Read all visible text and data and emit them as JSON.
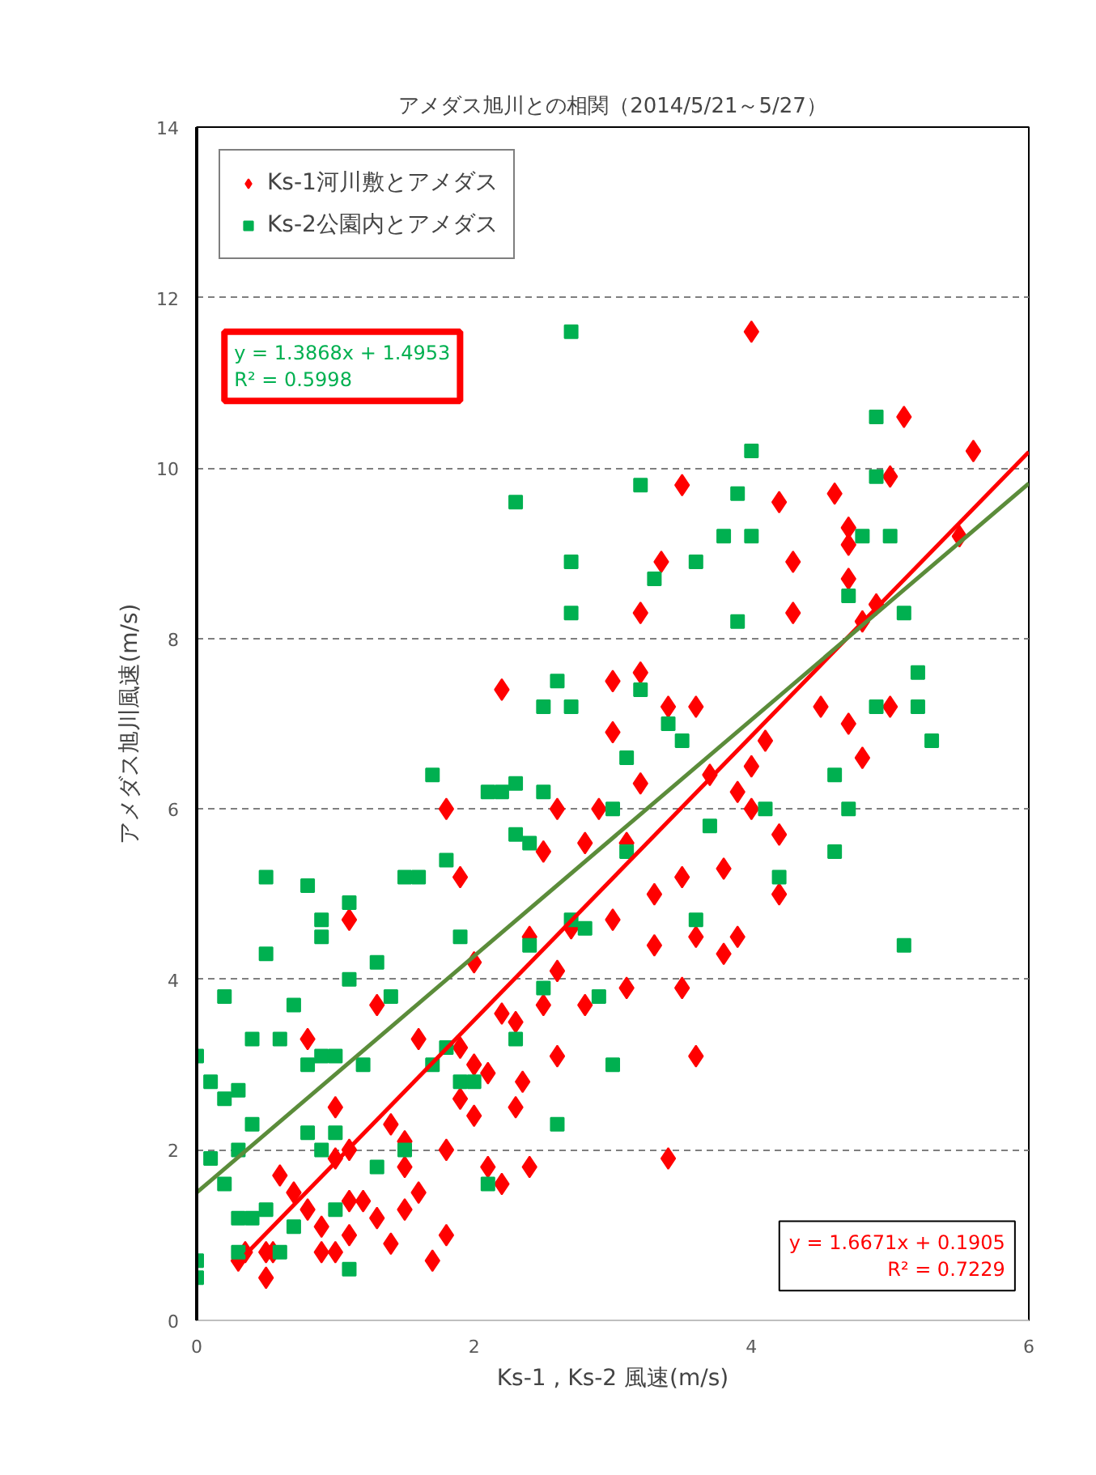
{
  "chart_data": {
    "type": "scatter",
    "title": "アメダス旭川との相関（2014/5/21～5/27）",
    "xlabel": "Ks-1 , Ks-2 風速(m/s)",
    "ylabel": "アメダス旭川風速(m/s)",
    "xlim": [
      0,
      6
    ],
    "ylim": [
      0,
      14
    ],
    "xticks": [
      0,
      2,
      4,
      6
    ],
    "yticks": [
      0,
      2,
      4,
      6,
      8,
      10,
      12,
      14
    ],
    "grid": "y",
    "legend": "top left",
    "annotations": [
      "y = 1.3868x + 1.4953\nR² = 0.5998",
      "y = 1.6671x + 0.1905\nR² = 0.7229"
    ],
    "series": [
      {
        "name": "Ks-1河川敷とアメダス",
        "color": "#ff0000",
        "marker": "diamond",
        "x": [
          0.3,
          0.35,
          0.5,
          0.5,
          0.55,
          0.6,
          0.7,
          0.8,
          0.8,
          0.9,
          0.9,
          1.0,
          1.0,
          1.0,
          1.1,
          1.1,
          1.1,
          1.1,
          1.2,
          1.3,
          1.3,
          1.4,
          1.4,
          1.5,
          1.5,
          1.6,
          1.6,
          1.7,
          1.8,
          1.8,
          1.8,
          1.9,
          1.9,
          1.9,
          2.0,
          2.0,
          2.1,
          2.1,
          2.2,
          2.2,
          2.2,
          2.3,
          2.3,
          2.35,
          2.4,
          2.4,
          2.5,
          2.5,
          2.6,
          2.6,
          2.6,
          2.7,
          2.8,
          2.8,
          2.9,
          3.0,
          3.0,
          3.0,
          3.1,
          3.1,
          3.2,
          3.2,
          3.2,
          3.3,
          3.3,
          3.35,
          3.4,
          3.4,
          3.5,
          3.5,
          3.5,
          3.6,
          3.6,
          3.6,
          3.7,
          3.8,
          3.8,
          3.9,
          3.9,
          4.0,
          4.0,
          4.1,
          4.2,
          4.2,
          4.3,
          4.3,
          4.2,
          4.5,
          4.6,
          4.7,
          4.7,
          4.7,
          4.7,
          4.8,
          4.8,
          4.9,
          5.0,
          5.0,
          5.1,
          5.5,
          5.6,
          4.0,
          1.5,
          2.0
        ],
        "values": [
          0.7,
          0.8,
          0.5,
          0.8,
          0.8,
          1.7,
          1.5,
          1.3,
          3.3,
          0.8,
          1.1,
          0.8,
          1.9,
          2.5,
          1.0,
          1.4,
          2.0,
          4.7,
          1.4,
          1.2,
          3.7,
          0.9,
          2.3,
          1.8,
          2.1,
          1.5,
          3.3,
          0.7,
          1.0,
          2.0,
          6.0,
          2.6,
          3.2,
          5.2,
          3.0,
          4.2,
          1.8,
          2.9,
          1.6,
          3.6,
          7.4,
          2.5,
          3.5,
          2.8,
          1.8,
          4.5,
          3.7,
          5.5,
          3.1,
          4.1,
          6.0,
          4.6,
          3.7,
          5.6,
          6.0,
          4.7,
          6.9,
          7.5,
          3.9,
          5.6,
          6.3,
          7.6,
          8.3,
          4.4,
          5.0,
          8.9,
          1.9,
          7.2,
          3.9,
          5.2,
          9.8,
          3.1,
          4.5,
          7.2,
          6.4,
          4.3,
          5.3,
          4.5,
          6.2,
          6.5,
          11.6,
          6.8,
          5.0,
          5.7,
          8.3,
          8.9,
          9.6,
          7.2,
          9.7,
          7.0,
          8.7,
          9.1,
          9.3,
          6.6,
          8.2,
          8.4,
          7.2,
          9.9,
          10.6,
          9.2,
          10.2,
          6.0,
          1.3,
          2.4
        ]
      },
      {
        "name": "Ks-2公園内とアメダス",
        "color": "#00b050",
        "marker": "square",
        "x": [
          0.0,
          0.0,
          0.0,
          0.1,
          0.1,
          0.2,
          0.2,
          0.2,
          0.3,
          0.3,
          0.3,
          0.3,
          0.4,
          0.4,
          0.4,
          0.5,
          0.5,
          0.5,
          0.6,
          0.6,
          0.7,
          0.7,
          0.8,
          0.8,
          0.8,
          0.9,
          0.9,
          0.9,
          0.9,
          1.0,
          1.0,
          1.0,
          1.1,
          1.1,
          1.1,
          1.2,
          1.3,
          1.3,
          1.4,
          1.5,
          1.5,
          1.6,
          1.7,
          1.7,
          1.8,
          1.8,
          1.9,
          1.9,
          2.0,
          2.1,
          2.1,
          2.2,
          2.3,
          2.3,
          2.3,
          2.3,
          2.4,
          2.4,
          2.5,
          2.5,
          2.5,
          2.6,
          2.6,
          2.7,
          2.7,
          2.7,
          2.7,
          2.7,
          2.8,
          2.9,
          3.0,
          3.0,
          3.1,
          3.1,
          3.2,
          3.2,
          3.3,
          3.4,
          3.5,
          3.6,
          3.6,
          3.7,
          3.8,
          3.9,
          3.9,
          4.0,
          4.0,
          4.1,
          4.2,
          4.6,
          4.6,
          4.7,
          4.7,
          4.8,
          4.9,
          4.9,
          4.9,
          5.0,
          5.1,
          5.1,
          5.2,
          5.2,
          5.3
        ],
        "values": [
          0.5,
          0.7,
          3.1,
          1.9,
          2.8,
          3.8,
          1.6,
          2.6,
          0.8,
          1.2,
          2.0,
          2.7,
          1.2,
          2.3,
          3.3,
          5.2,
          1.3,
          4.3,
          0.8,
          3.3,
          3.7,
          1.1,
          5.1,
          2.2,
          3.0,
          4.5,
          4.7,
          3.1,
          2.0,
          1.3,
          2.2,
          3.1,
          4.0,
          4.9,
          0.6,
          3.0,
          1.8,
          4.2,
          3.8,
          5.2,
          2.0,
          5.2,
          6.4,
          3.0,
          5.4,
          3.2,
          4.5,
          2.8,
          2.8,
          6.2,
          1.6,
          6.2,
          9.6,
          6.3,
          5.7,
          3.3,
          4.4,
          5.6,
          7.2,
          3.9,
          6.2,
          7.5,
          2.3,
          11.6,
          8.9,
          8.3,
          7.2,
          4.7,
          4.6,
          3.8,
          3.0,
          6.0,
          5.5,
          6.6,
          9.8,
          7.4,
          8.7,
          7.0,
          6.8,
          4.7,
          8.9,
          5.8,
          9.2,
          8.2,
          9.7,
          10.2,
          9.2,
          6.0,
          5.2,
          5.5,
          6.4,
          6.0,
          8.5,
          9.2,
          10.6,
          9.9,
          7.2,
          9.2,
          8.3,
          4.4,
          7.2,
          7.6,
          6.8
        ]
      },
      {
        "type": "line",
        "color": "#ff0000",
        "x": [
          0.35,
          6
        ],
        "values": [
          0.77,
          10.19
        ]
      },
      {
        "type": "line",
        "color": "#5b8c3a",
        "x": [
          0,
          6
        ],
        "values": [
          1.5,
          9.82
        ]
      }
    ]
  }
}
